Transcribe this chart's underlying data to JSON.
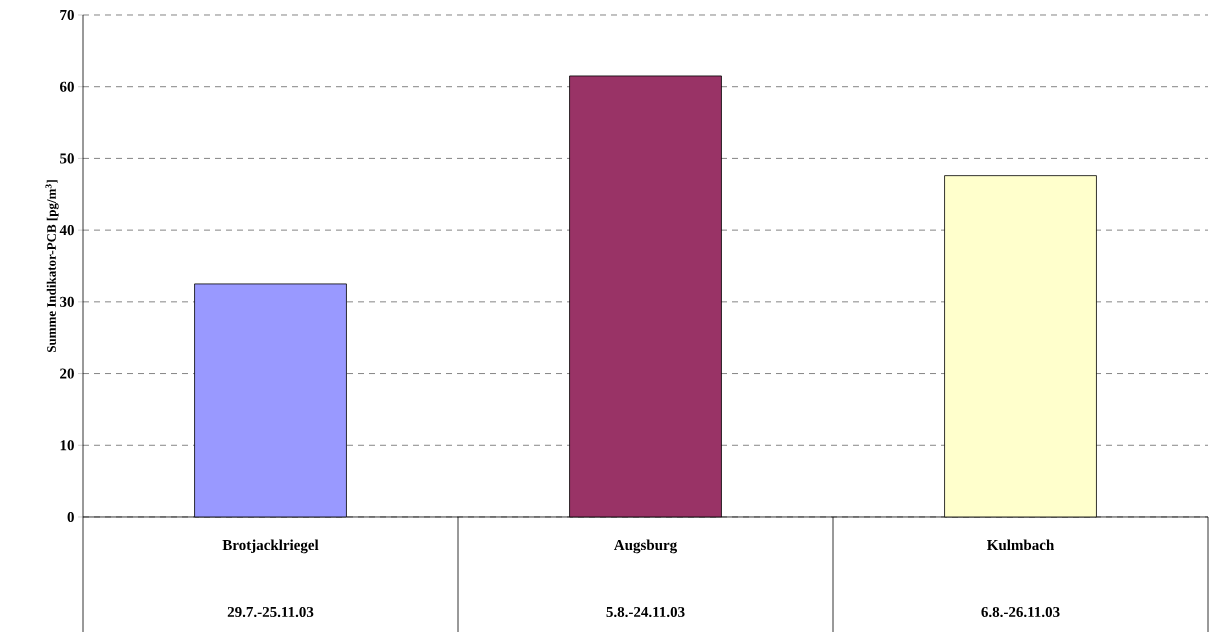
{
  "chart_data": {
    "type": "bar",
    "ylabel": "Summe Indikator-PCB [pg/m$^{3}$]",
    "categories": [
      "Brotjacklriegel",
      "Augsburg",
      "Kulmbach"
    ],
    "values": [
      32.5,
      61.5,
      47.6
    ],
    "colors": [
      "#9999ff",
      "#993366",
      "#ffffcc"
    ],
    "annotations": [
      "29.7.-25.11.03",
      "5.8.-24.11.03",
      "6.8.-26.11.03"
    ],
    "ylim": [
      0,
      70
    ],
    "yticks": [
      0,
      10,
      20,
      30,
      40,
      50,
      60,
      70
    ],
    "grid": "y"
  }
}
